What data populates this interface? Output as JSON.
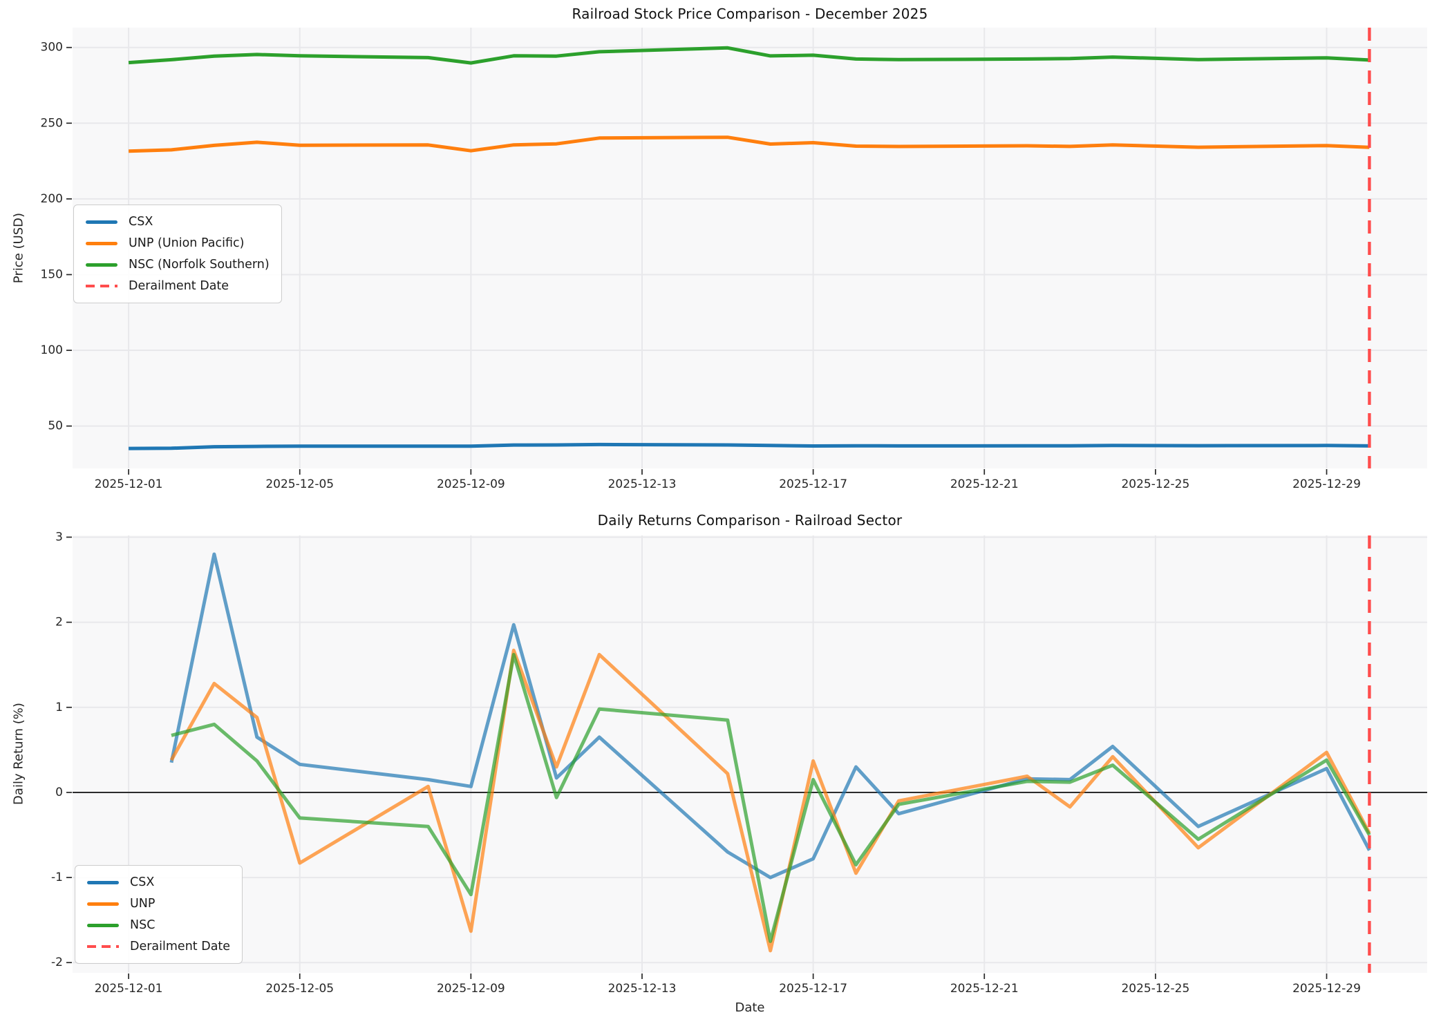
{
  "page": {
    "top_title": "Railroad Stock Price Comparison - December 2025",
    "bottom_title": "Daily Returns Comparison - Railroad Sector"
  },
  "chart_data": [
    {
      "type": "line",
      "title": "Railroad Stock Price Comparison - December 2025",
      "ylabel": "Price (USD)",
      "xlabel": "",
      "x": [
        "2025-12-01",
        "2025-12-02",
        "2025-12-03",
        "2025-12-04",
        "2025-12-05",
        "2025-12-08",
        "2025-12-09",
        "2025-12-10",
        "2025-12-11",
        "2025-12-12",
        "2025-12-15",
        "2025-12-16",
        "2025-12-17",
        "2025-12-18",
        "2025-12-19",
        "2025-12-22",
        "2025-12-23",
        "2025-12-24",
        "2025-12-26",
        "2025-12-29",
        "2025-12-30"
      ],
      "series": [
        {
          "name": "CSX",
          "color": "#1f77b4",
          "values": [
            35.2,
            35.32,
            36.31,
            36.55,
            36.67,
            36.72,
            36.75,
            37.47,
            37.53,
            37.78,
            37.51,
            37.14,
            36.85,
            36.95,
            36.86,
            36.92,
            36.97,
            37.17,
            37.02,
            37.13,
            36.87
          ]
        },
        {
          "name": "UNP (Union Pacific)",
          "color": "#ff7f0e",
          "values": [
            231.5,
            232.38,
            235.35,
            237.42,
            235.45,
            235.62,
            231.78,
            235.65,
            236.35,
            240.18,
            240.71,
            236.23,
            237.11,
            234.85,
            234.62,
            235.06,
            234.66,
            235.65,
            234.12,
            235.22,
            234.09
          ]
        },
        {
          "name": "NSC (Norfolk Southern)",
          "color": "#2ca02c",
          "values": [
            290.0,
            291.94,
            294.28,
            295.37,
            294.48,
            293.3,
            289.78,
            294.48,
            294.3,
            297.18,
            299.71,
            294.46,
            294.9,
            292.4,
            291.99,
            292.37,
            292.72,
            293.65,
            292.04,
            293.15,
            291.68
          ]
        }
      ],
      "legend": [
        {
          "label": "CSX",
          "color": "#1f77b4",
          "style": "solid"
        },
        {
          "label": "UNP (Union Pacific)",
          "color": "#ff7f0e",
          "style": "solid"
        },
        {
          "label": "NSC (Norfolk Southern)",
          "color": "#2ca02c",
          "style": "solid"
        },
        {
          "label": "Derailment Date",
          "color": "#ff4d4d",
          "style": "dashed"
        }
      ],
      "legend_position": "center left",
      "derailment_date": "2025-12-30",
      "derailment_color": "#ff4d4d",
      "xticks": [
        "2025-12-01",
        "2025-12-05",
        "2025-12-09",
        "2025-12-13",
        "2025-12-17",
        "2025-12-21",
        "2025-12-25",
        "2025-12-29"
      ],
      "yticks": [
        50,
        100,
        150,
        200,
        250,
        300
      ],
      "ylim": [
        22,
        313.1
      ],
      "xlim_day_offsets": [
        -1.31,
        30.35
      ],
      "grid": true,
      "zero_line": false,
      "line_opacity": 1.0
    },
    {
      "type": "line",
      "title": "Daily Returns Comparison - Railroad Sector",
      "ylabel": "Daily Return (%)",
      "xlabel": "Date",
      "x": [
        "2025-12-02",
        "2025-12-03",
        "2025-12-04",
        "2025-12-05",
        "2025-12-08",
        "2025-12-09",
        "2025-12-10",
        "2025-12-11",
        "2025-12-12",
        "2025-12-15",
        "2025-12-16",
        "2025-12-17",
        "2025-12-18",
        "2025-12-19",
        "2025-12-22",
        "2025-12-23",
        "2025-12-24",
        "2025-12-26",
        "2025-12-29",
        "2025-12-30"
      ],
      "series": [
        {
          "name": "CSX",
          "color": "#1f77b4",
          "values": [
            0.35,
            2.8,
            0.65,
            0.33,
            0.15,
            0.07,
            1.97,
            0.17,
            0.65,
            -0.7,
            -1.0,
            -0.78,
            0.3,
            -0.25,
            0.16,
            0.15,
            0.54,
            -0.4,
            0.28,
            -0.68
          ]
        },
        {
          "name": "UNP",
          "color": "#ff7f0e",
          "values": [
            0.38,
            1.28,
            0.88,
            -0.83,
            0.07,
            -1.63,
            1.67,
            0.3,
            1.62,
            0.22,
            -1.86,
            0.37,
            -0.95,
            -0.1,
            0.19,
            -0.17,
            0.42,
            -0.65,
            0.47,
            -0.48
          ]
        },
        {
          "name": "NSC",
          "color": "#2ca02c",
          "values": [
            0.67,
            0.8,
            0.37,
            -0.3,
            -0.4,
            -1.2,
            1.62,
            -0.06,
            0.98,
            0.85,
            -1.75,
            0.15,
            -0.85,
            -0.14,
            0.13,
            0.12,
            0.32,
            -0.55,
            0.38,
            -0.5
          ]
        }
      ],
      "legend": [
        {
          "label": "CSX",
          "color": "#1f77b4",
          "style": "solid"
        },
        {
          "label": "UNP",
          "color": "#ff7f0e",
          "style": "solid"
        },
        {
          "label": "NSC",
          "color": "#2ca02c",
          "style": "solid"
        },
        {
          "label": "Derailment Date",
          "color": "#ff4d4d",
          "style": "dashed"
        }
      ],
      "legend_position": "lower left",
      "derailment_date": "2025-12-30",
      "derailment_color": "#ff4d4d",
      "xticks": [
        "2025-12-01",
        "2025-12-05",
        "2025-12-09",
        "2025-12-13",
        "2025-12-17",
        "2025-12-21",
        "2025-12-25",
        "2025-12-29"
      ],
      "yticks": [
        -2,
        -1,
        0,
        1,
        2,
        3
      ],
      "ylim": [
        -2.12,
        3.02
      ],
      "xlim_day_offsets": [
        -1.31,
        30.35
      ],
      "grid": true,
      "zero_line": true,
      "line_opacity": 0.7
    }
  ]
}
